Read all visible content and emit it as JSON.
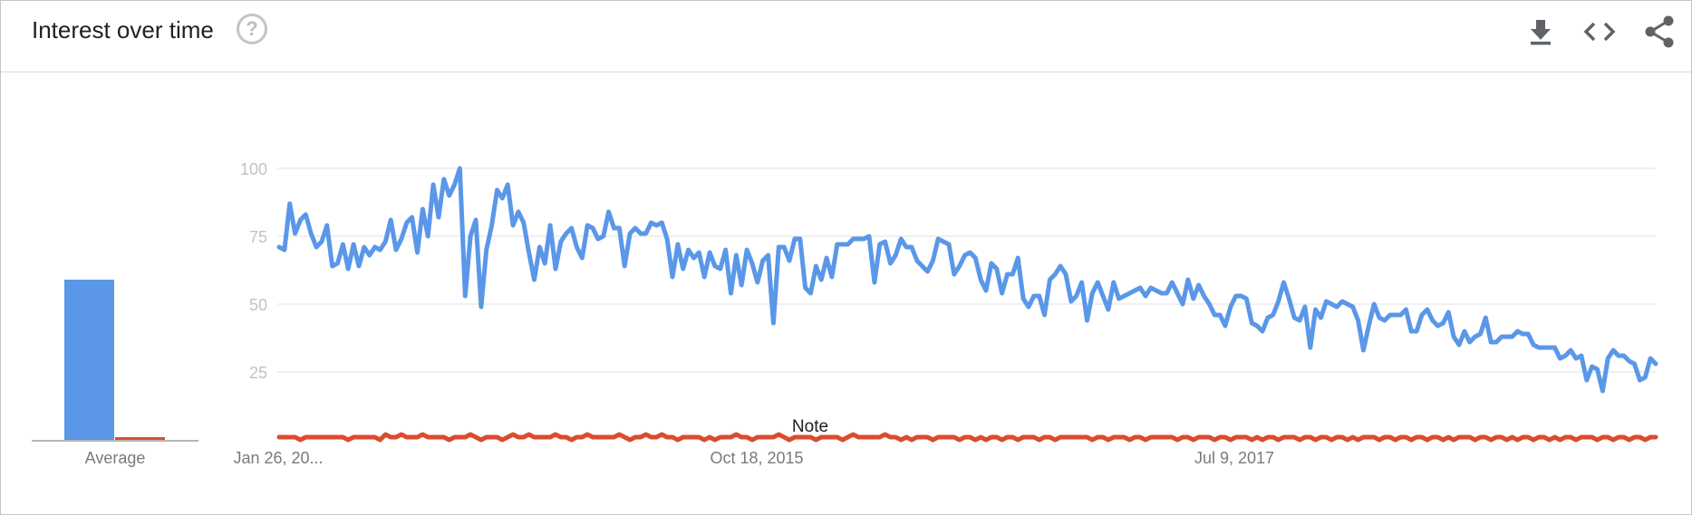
{
  "header": {
    "title": "Interest over time",
    "help_icon": "help-circle-icon",
    "actions": [
      "download-icon",
      "embed-code-icon",
      "share-icon"
    ]
  },
  "colors": {
    "series1": "#5a97e8",
    "series2": "#db4b2e",
    "grid": "#e0e0e0",
    "tick_text": "#c2c2c2",
    "label_text": "#7a7a7a",
    "icon": "#5f6368"
  },
  "average": {
    "label": "Average",
    "values": [
      59,
      1
    ]
  },
  "note": {
    "text": "Note"
  },
  "chart_data": {
    "type": "line",
    "ylim": [
      0,
      100
    ],
    "yticks": [
      25,
      50,
      75,
      100
    ],
    "x_tick_labels": [
      "Jan 26, 20...",
      "Oct 18, 2015",
      "Jul 9, 2017"
    ],
    "grid": true,
    "series": [
      {
        "values": [
          71,
          70,
          87,
          76,
          81,
          83,
          76,
          71,
          73,
          79,
          64,
          65,
          72,
          63,
          72,
          64,
          71,
          68,
          71,
          70,
          73,
          81,
          70,
          74,
          80,
          82,
          69,
          85,
          75,
          94,
          82,
          96,
          90,
          94,
          100,
          53,
          75,
          81,
          49,
          70,
          79,
          92,
          89,
          94,
          79,
          84,
          80,
          69,
          59,
          71,
          65,
          79,
          63,
          73,
          76,
          78,
          71,
          67,
          79,
          78,
          74,
          75,
          84,
          78,
          78,
          64,
          76,
          78,
          76,
          76,
          80,
          79,
          80,
          74,
          60,
          72,
          63,
          70,
          67,
          69,
          60,
          69,
          64,
          63,
          70,
          54,
          68,
          57,
          70,
          65,
          58,
          66,
          68,
          43,
          71,
          71,
          66,
          74,
          74,
          56,
          54,
          64,
          59,
          67,
          60,
          72,
          72,
          72,
          74,
          74,
          74,
          75,
          58,
          72,
          73,
          65,
          68,
          74,
          71,
          71,
          66,
          64,
          62,
          66,
          74,
          73,
          72,
          61,
          64,
          68,
          69,
          67,
          59,
          55,
          65,
          63,
          54,
          61,
          61,
          67,
          52,
          49,
          53,
          53,
          46,
          59,
          61,
          64,
          61,
          51,
          53,
          58,
          44,
          54,
          58,
          53,
          48,
          58,
          52,
          53,
          54,
          55,
          56,
          53,
          56,
          55,
          54,
          54,
          58,
          54,
          50,
          59,
          52,
          57,
          53,
          50,
          46,
          46,
          42,
          49,
          53,
          53,
          52,
          43,
          42,
          40,
          45,
          46,
          51,
          58,
          52,
          45,
          44,
          49,
          34,
          48,
          45,
          51,
          50,
          49,
          51,
          50,
          49,
          44,
          33,
          42,
          50,
          45,
          44,
          46,
          46,
          46,
          48,
          40,
          40,
          46,
          48,
          44,
          42,
          43,
          47,
          38,
          35,
          40,
          36,
          38,
          39,
          45,
          36,
          36,
          38,
          38,
          38,
          40,
          39,
          39,
          35,
          34,
          34,
          34,
          34,
          30,
          31,
          33,
          30,
          31,
          22,
          27,
          26,
          18,
          30,
          33,
          31,
          31,
          29,
          28,
          22,
          23,
          30,
          28
        ]
      },
      {
        "values": [
          1,
          1,
          1,
          1,
          0,
          1,
          1,
          1,
          1,
          1,
          1,
          1,
          1,
          0,
          1,
          1,
          1,
          1,
          1,
          0,
          2,
          1,
          1,
          2,
          1,
          1,
          1,
          2,
          1,
          1,
          1,
          1,
          0,
          1,
          1,
          1,
          2,
          1,
          0,
          1,
          1,
          1,
          0,
          1,
          2,
          1,
          1,
          2,
          1,
          1,
          1,
          1,
          2,
          1,
          1,
          0,
          1,
          1,
          2,
          1,
          1,
          1,
          1,
          1,
          2,
          1,
          0,
          1,
          1,
          2,
          1,
          1,
          2,
          1,
          1,
          0,
          1,
          1,
          1,
          1,
          0,
          1,
          0,
          1,
          1,
          1,
          2,
          1,
          1,
          0,
          1,
          1,
          1,
          1,
          2,
          1,
          0,
          1,
          1,
          1,
          1,
          0,
          1,
          1,
          1,
          1,
          0,
          1,
          2,
          1,
          1,
          1,
          1,
          1,
          2,
          1,
          1,
          0,
          1,
          0,
          1,
          1,
          1,
          0,
          1,
          1,
          1,
          1,
          0,
          1,
          1,
          0,
          1,
          0,
          1,
          1,
          0,
          1,
          1,
          0,
          1,
          1,
          1,
          0,
          1,
          1,
          0,
          1,
          1,
          1,
          1,
          1,
          1,
          0,
          1,
          1,
          0,
          1,
          1,
          1,
          0,
          1,
          1,
          0,
          1,
          1,
          1,
          1,
          1,
          0,
          1,
          1,
          0,
          1,
          1,
          1,
          0,
          1,
          1,
          0,
          1,
          1,
          1,
          0,
          1,
          0,
          1,
          1,
          0,
          1,
          1,
          1,
          0,
          1,
          1,
          0,
          1,
          1,
          0,
          1,
          1,
          0,
          1,
          0,
          1,
          1,
          1,
          0,
          1,
          1,
          0,
          1,
          1,
          0,
          1,
          1,
          0,
          1,
          1,
          0,
          1,
          0,
          1,
          1,
          1,
          0,
          1,
          1,
          0,
          1,
          1,
          0,
          1,
          0,
          1,
          1,
          0,
          1,
          1,
          0,
          1,
          0,
          1,
          1,
          0,
          1,
          1,
          1,
          0,
          1,
          1,
          0,
          1,
          1,
          0,
          1,
          1,
          0,
          1,
          1
        ]
      }
    ]
  }
}
